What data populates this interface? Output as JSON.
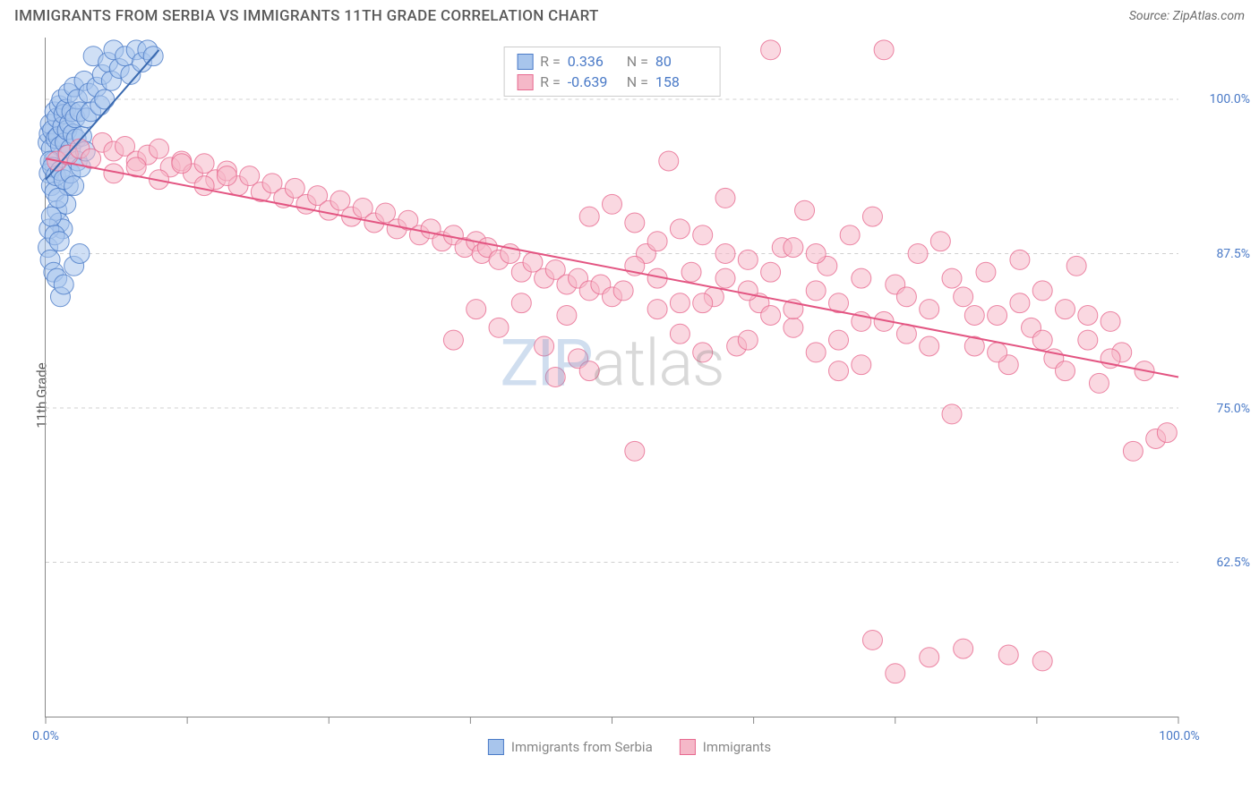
{
  "title": "IMMIGRANTS FROM SERBIA VS IMMIGRANTS 11TH GRADE CORRELATION CHART",
  "source_label": "Source: ZipAtlas.com",
  "y_axis_label": "11th Grade",
  "watermark": {
    "part1": "ZIP",
    "part2": "atlas"
  },
  "chart": {
    "type": "scatter",
    "background_color": "#ffffff",
    "grid_color": "#d0d0d0",
    "axis_color": "#888888",
    "marker_radius": 11,
    "marker_opacity": 0.55,
    "marker_stroke_opacity": 0.8,
    "xlim": [
      0,
      100
    ],
    "ylim": [
      50,
      105
    ],
    "x_ticks": [
      0,
      12.5,
      25,
      37.5,
      50,
      62.5,
      75,
      87.5,
      100
    ],
    "x_tick_labels": {
      "0": "0.0%",
      "100": "100.0%"
    },
    "y_ticks": [
      62.5,
      75,
      87.5,
      100
    ],
    "y_tick_labels": {
      "62.5": "62.5%",
      "75": "75.0%",
      "87.5": "87.5%",
      "100": "100.0%"
    },
    "series": [
      {
        "name": "Immigrants from Serbia",
        "color_fill": "#a8c5ec",
        "color_stroke": "#4a7ac7",
        "line_color": "#3a6ab0",
        "line_width": 2,
        "R": "0.336",
        "N": "80",
        "regression": {
          "x1": 0,
          "y1": 93.5,
          "x2": 10,
          "y2": 104
        },
        "points": [
          [
            0.2,
            96.5
          ],
          [
            0.3,
            97.2
          ],
          [
            0.4,
            98.0
          ],
          [
            0.5,
            96.0
          ],
          [
            0.6,
            97.5
          ],
          [
            0.7,
            95.0
          ],
          [
            0.8,
            99.0
          ],
          [
            0.9,
            96.8
          ],
          [
            1.0,
            98.5
          ],
          [
            1.1,
            97.0
          ],
          [
            1.2,
            99.5
          ],
          [
            1.3,
            96.2
          ],
          [
            1.4,
            100.0
          ],
          [
            1.5,
            97.8
          ],
          [
            1.6,
            98.8
          ],
          [
            1.7,
            96.5
          ],
          [
            1.8,
            99.2
          ],
          [
            1.9,
            97.5
          ],
          [
            2.0,
            100.5
          ],
          [
            2.1,
            98.0
          ],
          [
            2.2,
            96.0
          ],
          [
            2.3,
            99.0
          ],
          [
            2.4,
            97.2
          ],
          [
            2.5,
            101.0
          ],
          [
            2.6,
            98.5
          ],
          [
            2.7,
            96.8
          ],
          [
            2.8,
            100.0
          ],
          [
            3.0,
            99.0
          ],
          [
            3.2,
            97.0
          ],
          [
            3.4,
            101.5
          ],
          [
            3.6,
            98.5
          ],
          [
            3.8,
            100.5
          ],
          [
            4.0,
            99.0
          ],
          [
            4.2,
            103.5
          ],
          [
            4.5,
            101.0
          ],
          [
            4.8,
            99.5
          ],
          [
            5.0,
            102.0
          ],
          [
            5.2,
            100.0
          ],
          [
            5.5,
            103.0
          ],
          [
            5.8,
            101.5
          ],
          [
            6.0,
            104.0
          ],
          [
            6.5,
            102.5
          ],
          [
            7.0,
            103.5
          ],
          [
            7.5,
            102.0
          ],
          [
            8.0,
            104.0
          ],
          [
            8.5,
            103.0
          ],
          [
            9.0,
            104.0
          ],
          [
            9.5,
            103.5
          ],
          [
            0.3,
            94.0
          ],
          [
            0.5,
            93.0
          ],
          [
            0.8,
            92.5
          ],
          [
            1.0,
            91.0
          ],
          [
            1.2,
            90.0
          ],
          [
            1.5,
            89.5
          ],
          [
            1.8,
            91.5
          ],
          [
            2.0,
            93.0
          ],
          [
            0.4,
            95.0
          ],
          [
            0.6,
            94.5
          ],
          [
            0.9,
            93.8
          ],
          [
            1.1,
            92.0
          ],
          [
            1.3,
            94.2
          ],
          [
            1.6,
            93.5
          ],
          [
            1.9,
            95.5
          ],
          [
            2.2,
            94.0
          ],
          [
            2.5,
            93.0
          ],
          [
            2.8,
            95.0
          ],
          [
            3.1,
            94.5
          ],
          [
            3.5,
            95.8
          ],
          [
            0.2,
            88.0
          ],
          [
            0.4,
            87.0
          ],
          [
            0.7,
            86.0
          ],
          [
            1.0,
            85.5
          ],
          [
            1.3,
            84.0
          ],
          [
            1.6,
            85.0
          ],
          [
            0.3,
            89.5
          ],
          [
            0.5,
            90.5
          ],
          [
            0.8,
            89.0
          ],
          [
            1.2,
            88.5
          ],
          [
            2.5,
            86.5
          ],
          [
            3.0,
            87.5
          ]
        ]
      },
      {
        "name": "Immigrants",
        "color_fill": "#f5b8c8",
        "color_stroke": "#e76a90",
        "line_color": "#e35582",
        "line_width": 2,
        "R": "-0.639",
        "N": "158",
        "regression": {
          "x1": 0,
          "y1": 95.2,
          "x2": 100,
          "y2": 77.5
        },
        "points": [
          [
            1.0,
            95.0
          ],
          [
            2.0,
            95.5
          ],
          [
            3.0,
            96.0
          ],
          [
            4.0,
            95.2
          ],
          [
            5.0,
            96.5
          ],
          [
            6.0,
            95.8
          ],
          [
            7.0,
            96.2
          ],
          [
            8.0,
            95.0
          ],
          [
            9.0,
            95.5
          ],
          [
            10.0,
            96.0
          ],
          [
            11.0,
            94.5
          ],
          [
            12.0,
            95.0
          ],
          [
            13.0,
            94.0
          ],
          [
            14.0,
            94.8
          ],
          [
            15.0,
            93.5
          ],
          [
            16.0,
            94.2
          ],
          [
            17.0,
            93.0
          ],
          [
            18.0,
            93.8
          ],
          [
            19.0,
            92.5
          ],
          [
            20.0,
            93.2
          ],
          [
            21.0,
            92.0
          ],
          [
            22.0,
            92.8
          ],
          [
            23.0,
            91.5
          ],
          [
            24.0,
            92.2
          ],
          [
            25.0,
            91.0
          ],
          [
            26.0,
            91.8
          ],
          [
            27.0,
            90.5
          ],
          [
            28.0,
            91.2
          ],
          [
            29.0,
            90.0
          ],
          [
            30.0,
            90.8
          ],
          [
            31.0,
            89.5
          ],
          [
            32.0,
            90.2
          ],
          [
            33.0,
            89.0
          ],
          [
            34.0,
            89.5
          ],
          [
            35.0,
            88.5
          ],
          [
            36.0,
            89.0
          ],
          [
            37.0,
            88.0
          ],
          [
            38.0,
            88.5
          ],
          [
            38.5,
            87.5
          ],
          [
            39.0,
            88.0
          ],
          [
            40.0,
            87.0
          ],
          [
            41.0,
            87.5
          ],
          [
            42.0,
            86.0
          ],
          [
            43.0,
            86.8
          ],
          [
            44.0,
            85.5
          ],
          [
            45.0,
            86.2
          ],
          [
            46.0,
            85.0
          ],
          [
            47.0,
            85.5
          ],
          [
            48.0,
            84.5
          ],
          [
            49.0,
            85.0
          ],
          [
            50.0,
            84.0
          ],
          [
            51.0,
            84.5
          ],
          [
            36.0,
            80.5
          ],
          [
            38.0,
            83.0
          ],
          [
            40.0,
            81.5
          ],
          [
            42.0,
            83.5
          ],
          [
            44.0,
            80.0
          ],
          [
            46.0,
            82.5
          ],
          [
            45.0,
            77.5
          ],
          [
            47.0,
            79.0
          ],
          [
            48.0,
            78.0
          ],
          [
            52.0,
            90.0
          ],
          [
            53.0,
            87.5
          ],
          [
            54.0,
            83.0
          ],
          [
            55.0,
            95.0
          ],
          [
            56.0,
            81.0
          ],
          [
            57.0,
            86.0
          ],
          [
            58.0,
            89.0
          ],
          [
            59.0,
            84.0
          ],
          [
            60.0,
            92.0
          ],
          [
            61.0,
            80.0
          ],
          [
            62.0,
            87.0
          ],
          [
            63.0,
            83.5
          ],
          [
            64.0,
            104.0
          ],
          [
            65.0,
            88.0
          ],
          [
            66.0,
            81.5
          ],
          [
            67.0,
            91.0
          ],
          [
            68.0,
            84.5
          ],
          [
            69.0,
            86.5
          ],
          [
            70.0,
            78.0
          ],
          [
            71.0,
            89.0
          ],
          [
            72.0,
            82.0
          ],
          [
            73.0,
            90.5
          ],
          [
            74.0,
            104.0
          ],
          [
            75.0,
            85.0
          ],
          [
            76.0,
            81.0
          ],
          [
            77.0,
            87.5
          ],
          [
            78.0,
            83.0
          ],
          [
            79.0,
            88.5
          ],
          [
            80.0,
            74.5
          ],
          [
            81.0,
            84.0
          ],
          [
            82.0,
            80.0
          ],
          [
            83.0,
            86.0
          ],
          [
            84.0,
            82.5
          ],
          [
            85.0,
            78.5
          ],
          [
            86.0,
            87.0
          ],
          [
            87.0,
            81.5
          ],
          [
            88.0,
            84.5
          ],
          [
            89.0,
            79.0
          ],
          [
            90.0,
            83.0
          ],
          [
            91.0,
            86.5
          ],
          [
            92.0,
            80.5
          ],
          [
            93.0,
            77.0
          ],
          [
            94.0,
            82.0
          ],
          [
            95.0,
            79.5
          ],
          [
            96.0,
            71.5
          ],
          [
            97.0,
            78.0
          ],
          [
            98.0,
            72.5
          ],
          [
            99.0,
            73.0
          ],
          [
            52.0,
            71.5
          ],
          [
            54.0,
            85.5
          ],
          [
            56.0,
            83.5
          ],
          [
            58.0,
            79.5
          ],
          [
            60.0,
            85.5
          ],
          [
            62.0,
            80.5
          ],
          [
            64.0,
            82.5
          ],
          [
            66.0,
            88.0
          ],
          [
            68.0,
            79.5
          ],
          [
            70.0,
            83.5
          ],
          [
            72.0,
            78.5
          ],
          [
            48.0,
            90.5
          ],
          [
            50.0,
            91.5
          ],
          [
            52.0,
            86.5
          ],
          [
            54.0,
            88.5
          ],
          [
            56.0,
            89.5
          ],
          [
            58.0,
            83.5
          ],
          [
            60.0,
            87.5
          ],
          [
            62.0,
            84.5
          ],
          [
            64.0,
            86.0
          ],
          [
            66.0,
            83.0
          ],
          [
            68.0,
            87.5
          ],
          [
            70.0,
            80.5
          ],
          [
            72.0,
            85.5
          ],
          [
            74.0,
            82.0
          ],
          [
            76.0,
            84.0
          ],
          [
            78.0,
            80.0
          ],
          [
            80.0,
            85.5
          ],
          [
            82.0,
            82.5
          ],
          [
            84.0,
            79.5
          ],
          [
            86.0,
            83.5
          ],
          [
            88.0,
            80.5
          ],
          [
            90.0,
            78.0
          ],
          [
            92.0,
            82.5
          ],
          [
            94.0,
            79.0
          ],
          [
            85.0,
            55.0
          ],
          [
            88.0,
            54.5
          ],
          [
            73.0,
            56.2
          ],
          [
            75.0,
            53.5
          ],
          [
            78.0,
            54.8
          ],
          [
            81.0,
            55.5
          ],
          [
            6.0,
            94.0
          ],
          [
            8.0,
            94.5
          ],
          [
            10.0,
            93.5
          ],
          [
            12.0,
            94.8
          ],
          [
            14.0,
            93.0
          ],
          [
            16.0,
            93.8
          ]
        ]
      }
    ]
  },
  "legend": {
    "items": [
      {
        "label": "Immigrants from Serbia",
        "fill": "#a8c5ec",
        "stroke": "#4a7ac7"
      },
      {
        "label": "Immigrants",
        "fill": "#f5b8c8",
        "stroke": "#e76a90"
      }
    ]
  }
}
